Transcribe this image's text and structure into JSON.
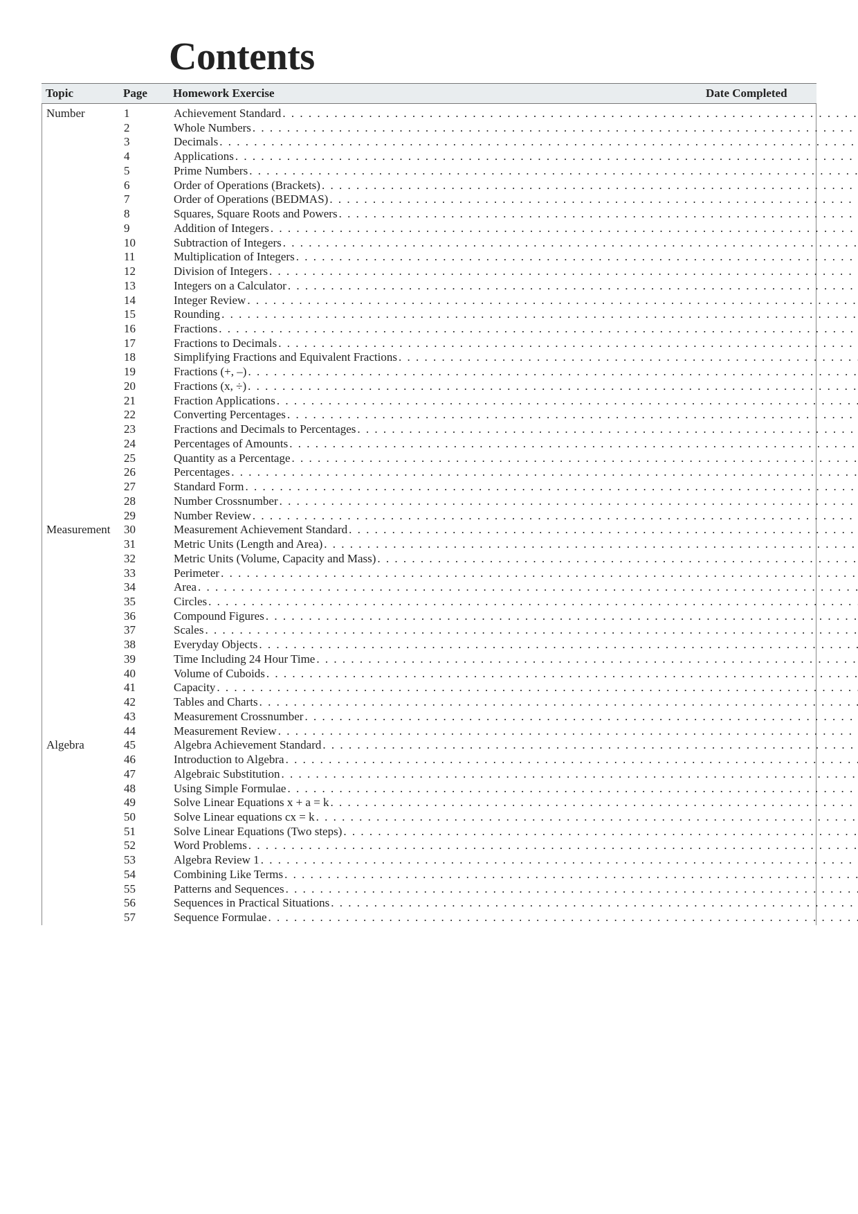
{
  "title": "Contents",
  "headers": {
    "topic": "Topic",
    "page": "Page",
    "homework": "Homework Exercise",
    "date": "Date Completed"
  },
  "entries": [
    {
      "topic": "Number",
      "page": "1",
      "homework": "Achievement Standard"
    },
    {
      "topic": "",
      "page": "2",
      "homework": "Whole Numbers"
    },
    {
      "topic": "",
      "page": "3",
      "homework": "Decimals"
    },
    {
      "topic": "",
      "page": "4",
      "homework": "Applications"
    },
    {
      "topic": "",
      "page": "5",
      "homework": "Prime Numbers"
    },
    {
      "topic": "",
      "page": "6",
      "homework": "Order of Operations (Brackets)"
    },
    {
      "topic": "",
      "page": "7",
      "homework": "Order of Operations (BEDMAS)"
    },
    {
      "topic": "",
      "page": "8",
      "homework": "Squares, Square Roots and Powers"
    },
    {
      "topic": "",
      "page": "9",
      "homework": "Addition of Integers"
    },
    {
      "topic": "",
      "page": "10",
      "homework": "Subtraction of Integers"
    },
    {
      "topic": "",
      "page": "11",
      "homework": "Multiplication of Integers"
    },
    {
      "topic": "",
      "page": "12",
      "homework": "Division of Integers"
    },
    {
      "topic": "",
      "page": "13",
      "homework": "Integers on a Calculator"
    },
    {
      "topic": "",
      "page": "14",
      "homework": "Integer Review"
    },
    {
      "topic": "",
      "page": "15",
      "homework": "Rounding"
    },
    {
      "topic": "",
      "page": "16",
      "homework": "Fractions"
    },
    {
      "topic": "",
      "page": "17",
      "homework": "Fractions to Decimals"
    },
    {
      "topic": "",
      "page": "18",
      "homework": "Simplifying Fractions and Equivalent Fractions"
    },
    {
      "topic": "",
      "page": "19",
      "homework": "Fractions (+, –)"
    },
    {
      "topic": "",
      "page": "20",
      "homework": "Fractions (x, ÷)"
    },
    {
      "topic": "",
      "page": "21",
      "homework": "Fraction Applications"
    },
    {
      "topic": "",
      "page": "22",
      "homework": "Converting Percentages"
    },
    {
      "topic": "",
      "page": "23",
      "homework": "Fractions and Decimals to Percentages"
    },
    {
      "topic": "",
      "page": "24",
      "homework": "Percentages of Amounts"
    },
    {
      "topic": "",
      "page": "25",
      "homework": "Quantity as a Percentage"
    },
    {
      "topic": "",
      "page": "26",
      "homework": "Percentages"
    },
    {
      "topic": "",
      "page": "27",
      "homework": "Standard Form"
    },
    {
      "topic": "",
      "page": "28",
      "homework": "Number Crossnumber"
    },
    {
      "topic": "",
      "page": "29",
      "homework": "Number Review"
    },
    {
      "topic": "Measurement",
      "page": "30",
      "homework": "Measurement Achievement Standard"
    },
    {
      "topic": "",
      "page": "31",
      "homework": "Metric Units (Length and Area)"
    },
    {
      "topic": "",
      "page": "32",
      "homework": "Metric Units (Volume, Capacity and Mass)"
    },
    {
      "topic": "",
      "page": "33",
      "homework": "Perimeter"
    },
    {
      "topic": "",
      "page": "34",
      "homework": "Area"
    },
    {
      "topic": "",
      "page": "35",
      "homework": "Circles"
    },
    {
      "topic": "",
      "page": "36",
      "homework": "Compound Figures"
    },
    {
      "topic": "",
      "page": "37",
      "homework": "Scales"
    },
    {
      "topic": "",
      "page": "38",
      "homework": "Everyday Objects"
    },
    {
      "topic": "",
      "page": "39",
      "homework": "Time Including 24 Hour Time"
    },
    {
      "topic": "",
      "page": "40",
      "homework": "Volume of Cuboids"
    },
    {
      "topic": "",
      "page": "41",
      "homework": "Capacity"
    },
    {
      "topic": "",
      "page": "42",
      "homework": "Tables and Charts"
    },
    {
      "topic": "",
      "page": "43",
      "homework": "Measurement Crossnumber"
    },
    {
      "topic": "",
      "page": "44",
      "homework": "Measurement Review"
    },
    {
      "topic": "Algebra",
      "page": "45",
      "homework": "Algebra Achievement Standard"
    },
    {
      "topic": "",
      "page": "46",
      "homework": "Introduction to Algebra"
    },
    {
      "topic": "",
      "page": "47",
      "homework": "Algebraic Substitution"
    },
    {
      "topic": "",
      "page": "48",
      "homework": "Using Simple Formulae"
    },
    {
      "topic": "",
      "page": "49",
      "homework": "Solve Linear Equations x + a = k"
    },
    {
      "topic": "",
      "page": "50",
      "homework": "Solve Linear equations cx = k"
    },
    {
      "topic": "",
      "page": "51",
      "homework": "Solve Linear Equations (Two steps)"
    },
    {
      "topic": "",
      "page": "52",
      "homework": "Word Problems"
    },
    {
      "topic": "",
      "page": "53",
      "homework": "Algebra Review 1"
    },
    {
      "topic": "",
      "page": "54",
      "homework": "Combining Like Terms"
    },
    {
      "topic": "",
      "page": "55",
      "homework": "Patterns and Sequences"
    },
    {
      "topic": "",
      "page": "56",
      "homework": "Sequences in Practical Situations"
    },
    {
      "topic": "",
      "page": "57",
      "homework": "Sequence Formulae"
    }
  ]
}
